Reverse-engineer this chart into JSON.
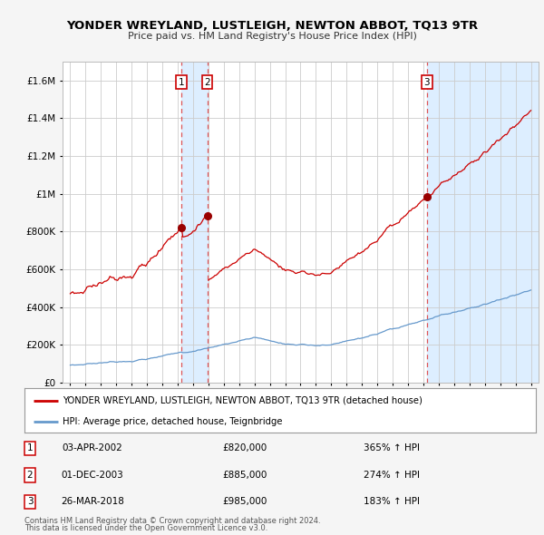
{
  "title": "YONDER WREYLAND, LUSTLEIGH, NEWTON ABBOT, TQ13 9TR",
  "subtitle": "Price paid vs. HM Land Registry's House Price Index (HPI)",
  "legend_line1": "YONDER WREYLAND, LUSTLEIGH, NEWTON ABBOT, TQ13 9TR (detached house)",
  "legend_line2": "HPI: Average price, detached house, Teignbridge",
  "footer_line1": "Contains HM Land Registry data © Crown copyright and database right 2024.",
  "footer_line2": "This data is licensed under the Open Government Licence v3.0.",
  "sales": [
    {
      "num": 1,
      "date": "03-APR-2002",
      "price": 820000,
      "pct": "365%",
      "dir": "↑",
      "label": "HPI"
    },
    {
      "num": 2,
      "date": "01-DEC-2003",
      "price": 885000,
      "pct": "274%",
      "dir": "↑",
      "label": "HPI"
    },
    {
      "num": 3,
      "date": "26-MAR-2018",
      "price": 985000,
      "pct": "183%",
      "dir": "↑",
      "label": "HPI"
    }
  ],
  "sale_years": [
    2002.25,
    2003.92,
    2018.23
  ],
  "sale_prices": [
    820000,
    885000,
    985000
  ],
  "red_line_color": "#cc0000",
  "blue_line_color": "#6699cc",
  "dashed_line_color": "#dd4444",
  "shade_color": "#ddeeff",
  "background_color": "#f5f5f5",
  "plot_bg_color": "#ffffff",
  "grid_color": "#cccccc",
  "ylim": [
    0,
    1700000
  ],
  "yticks": [
    0,
    200000,
    400000,
    600000,
    800000,
    1000000,
    1200000,
    1400000,
    1600000
  ],
  "ytick_labels": [
    "£0",
    "£200K",
    "£400K",
    "£600K",
    "£800K",
    "£1M",
    "£1.2M",
    "£1.4M",
    "£1.6M"
  ],
  "xlim_start": 1994.5,
  "xlim_end": 2025.5,
  "xtick_years": [
    1995,
    1996,
    1997,
    1998,
    1999,
    2000,
    2001,
    2002,
    2003,
    2004,
    2005,
    2006,
    2007,
    2008,
    2009,
    2010,
    2011,
    2012,
    2013,
    2014,
    2015,
    2016,
    2017,
    2018,
    2019,
    2020,
    2021,
    2022,
    2023,
    2024,
    2025
  ]
}
